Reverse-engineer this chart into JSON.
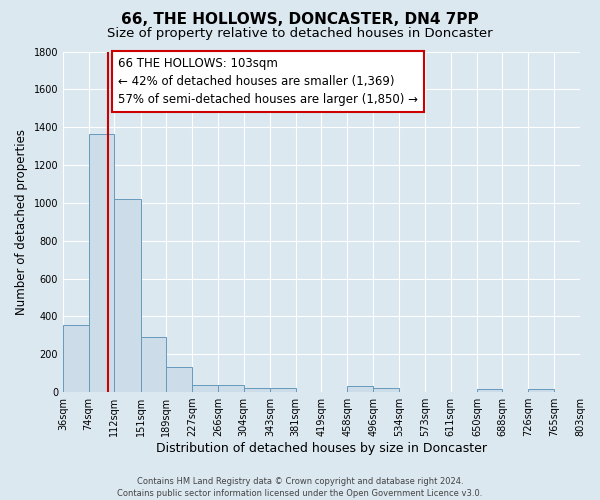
{
  "title": "66, THE HOLLOWS, DONCASTER, DN4 7PP",
  "subtitle": "Size of property relative to detached houses in Doncaster",
  "xlabel": "Distribution of detached houses by size in Doncaster",
  "ylabel": "Number of detached properties",
  "footer_lines": [
    "Contains HM Land Registry data © Crown copyright and database right 2024.",
    "Contains public sector information licensed under the Open Government Licence v3.0."
  ],
  "bar_edges": [
    36,
    74,
    112,
    151,
    189,
    227,
    266,
    304,
    343,
    381,
    419,
    458,
    496,
    534,
    573,
    611,
    650,
    688,
    726,
    765,
    803
  ],
  "bar_heights": [
    355,
    1365,
    1020,
    290,
    130,
    40,
    35,
    20,
    20,
    0,
    0,
    30,
    20,
    0,
    0,
    0,
    15,
    0,
    15,
    0,
    0
  ],
  "bar_color": "#ccdce8",
  "bar_edge_color": "#6699bb",
  "property_size": 103,
  "vline_color": "#cc0000",
  "annotation_text": "66 THE HOLLOWS: 103sqm\n← 42% of detached houses are smaller (1,369)\n57% of semi-detached houses are larger (1,850) →",
  "annotation_bbox_color": "#ffffff",
  "annotation_bbox_edge": "#cc0000",
  "ylim": [
    0,
    1800
  ],
  "yticks": [
    0,
    200,
    400,
    600,
    800,
    1000,
    1200,
    1400,
    1600,
    1800
  ],
  "background_color": "#dce8f0",
  "plot_bg_color": "#dce8f0",
  "grid_color": "#ffffff",
  "title_fontsize": 11,
  "subtitle_fontsize": 9.5,
  "xlabel_fontsize": 9,
  "ylabel_fontsize": 8.5,
  "tick_fontsize": 7,
  "annotation_fontsize": 8.5,
  "footer_fontsize": 6
}
